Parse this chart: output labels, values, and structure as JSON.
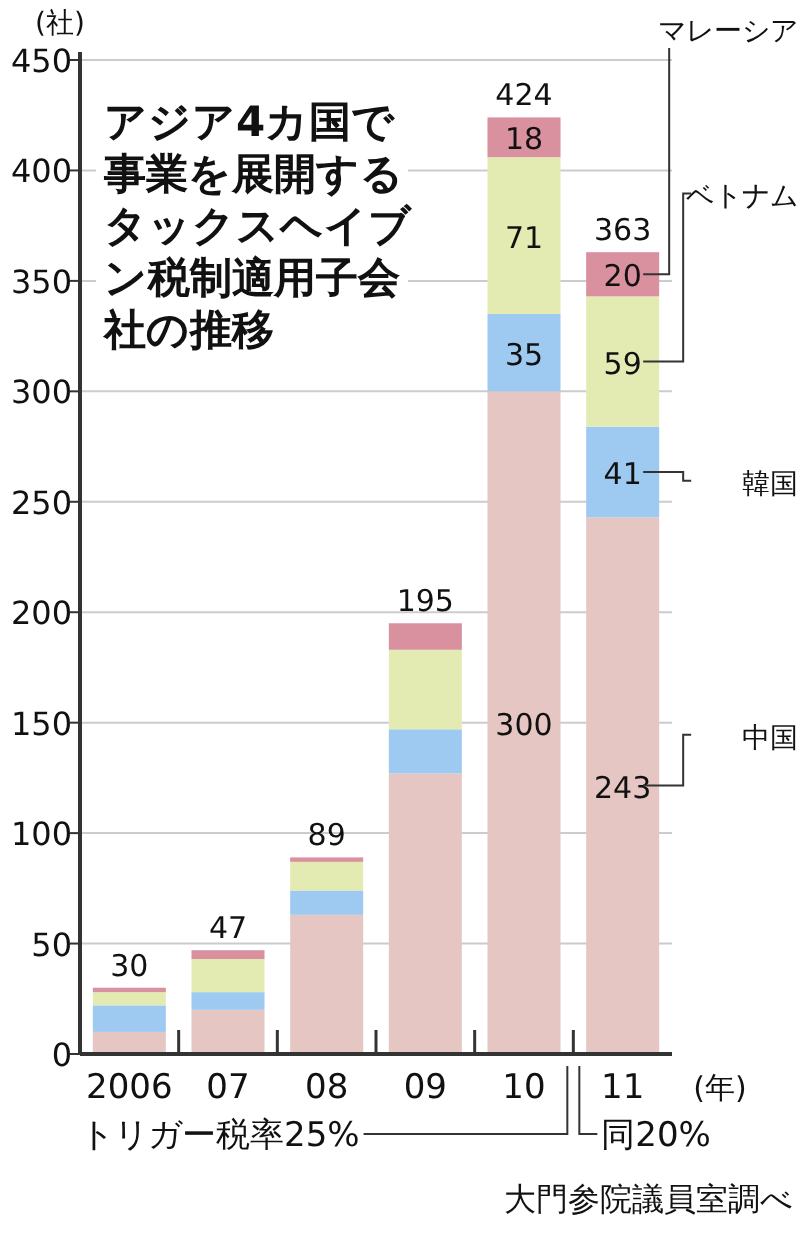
{
  "chart_data": {
    "type": "bar",
    "stacked": true,
    "title": "アジア4カ国で事業を展開するタックスヘイブン税制適用子会社の推移",
    "ylabel": "(社)",
    "xlabel": "(年)",
    "categories": [
      "2006",
      "07",
      "08",
      "09",
      "10",
      "11"
    ],
    "series": [
      {
        "name": "中国",
        "color": "#e6c6c2",
        "values": [
          10,
          20,
          63,
          127,
          300,
          243
        ],
        "value_labels": [
          null,
          null,
          null,
          null,
          "300",
          "243"
        ]
      },
      {
        "name": "韓国",
        "color": "#9ecaf2",
        "values": [
          12,
          8,
          11,
          20,
          35,
          41
        ],
        "value_labels": [
          null,
          null,
          null,
          null,
          "35",
          "41"
        ]
      },
      {
        "name": "ベトナム",
        "color": "#e4ebb2",
        "values": [
          6,
          15,
          13,
          36,
          71,
          59
        ],
        "value_labels": [
          null,
          null,
          null,
          null,
          "71",
          "59"
        ]
      },
      {
        "name": "マレーシア",
        "color": "#d9909f",
        "values": [
          2,
          4,
          2,
          12,
          18,
          20
        ],
        "value_labels": [
          null,
          null,
          null,
          null,
          "18",
          "20"
        ]
      }
    ],
    "totals": [
      "30",
      "47",
      "89",
      "195",
      "424",
      "363"
    ],
    "ylim": [
      0,
      450
    ],
    "yticks": [
      0,
      50,
      100,
      150,
      200,
      250,
      300,
      350,
      400,
      450
    ],
    "grid": "y",
    "legend": "right",
    "annotations": [
      "トリガー税率25%",
      "同20%",
      "大門参院議員室調べ"
    ]
  }
}
